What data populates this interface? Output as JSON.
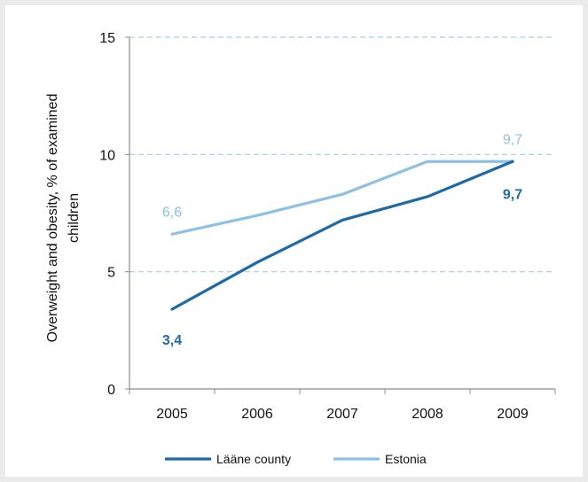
{
  "chart_data": {
    "type": "line",
    "title": "",
    "xlabel": "",
    "ylabel_lines": [
      "Overweight and obesity, % of examined",
      "children"
    ],
    "categories": [
      "2005",
      "2006",
      "2007",
      "2008",
      "2009"
    ],
    "ylim": [
      0,
      15
    ],
    "yticks": [
      0,
      5,
      10,
      15
    ],
    "ytick_labels": [
      "0",
      "5",
      "10",
      "15"
    ],
    "grid": "horizontal dashed",
    "legend_position": "bottom",
    "series": [
      {
        "name": "Lääne county",
        "values": [
          3.4,
          5.4,
          7.2,
          8.2,
          9.7
        ],
        "color": "#1f6aa5"
      },
      {
        "name": "Estonia",
        "values": [
          6.6,
          7.4,
          8.3,
          9.7,
          9.7
        ],
        "color": "#8ec0e3"
      }
    ],
    "annotations": [
      {
        "series": 0,
        "index": 0,
        "text": "3,4",
        "bold": true
      },
      {
        "series": 0,
        "index": 4,
        "text": "9,7",
        "bold": true
      },
      {
        "series": 1,
        "index": 0,
        "text": "6,6",
        "bold": false
      },
      {
        "series": 1,
        "index": 4,
        "text": "9,7",
        "bold": false
      }
    ]
  }
}
